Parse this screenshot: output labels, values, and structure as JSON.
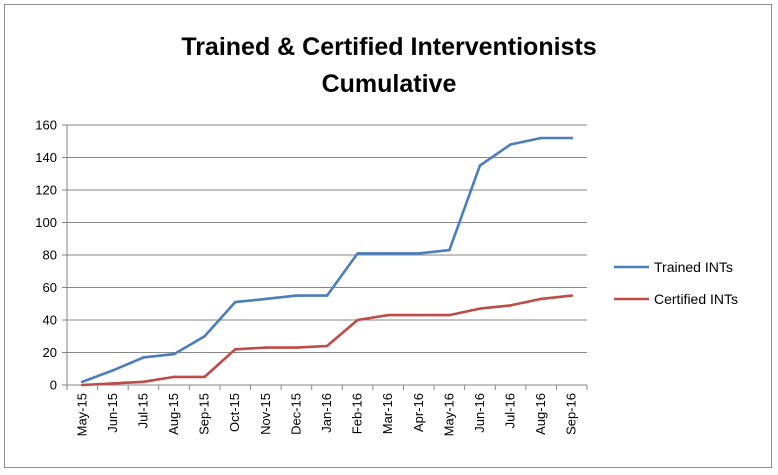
{
  "chart_data": {
    "type": "line",
    "title_line1": "Trained & Certified Interventionists",
    "title_line2": "Cumulative",
    "xlabel": "",
    "ylabel": "",
    "ylim": [
      0,
      160
    ],
    "yticks": [
      0,
      20,
      40,
      60,
      80,
      100,
      120,
      140,
      160
    ],
    "grid": true,
    "legend_position": "right",
    "categories": [
      "May-15",
      "Jun-15",
      "Jul-15",
      "Aug-15",
      "Sep-15",
      "Oct-15",
      "Nov-15",
      "Dec-15",
      "Jan-16",
      "Feb-16",
      "Mar-16",
      "Apr-16",
      "May-16",
      "Jun-16",
      "Jul-16",
      "Aug-16",
      "Sep-16"
    ],
    "series": [
      {
        "name": "Trained INTs",
        "color": "#4a7ebb",
        "values": [
          2,
          9,
          17,
          19,
          30,
          51,
          53,
          55,
          55,
          81,
          81,
          81,
          83,
          135,
          148,
          152,
          152
        ]
      },
      {
        "name": "Certified INTs",
        "color": "#be4b48",
        "values": [
          0,
          1,
          2,
          5,
          5,
          22,
          23,
          23,
          24,
          40,
          43,
          43,
          43,
          47,
          49,
          53,
          55
        ]
      }
    ]
  }
}
